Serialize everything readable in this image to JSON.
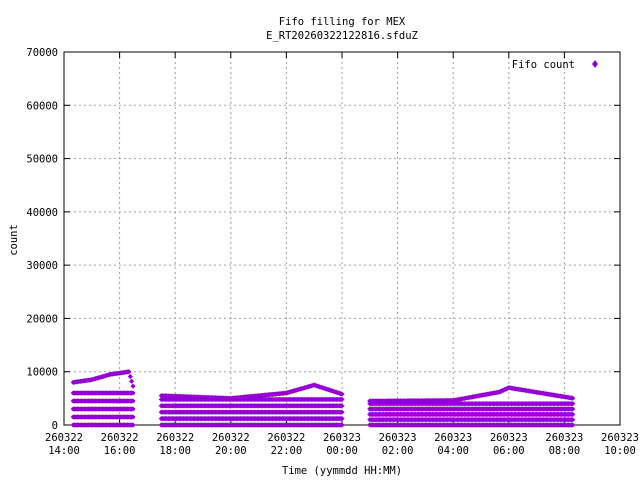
{
  "chart_data": {
    "type": "scatter",
    "title": "Fifo filling for MEX",
    "subtitle": "E_RT20260322122816.sfduZ",
    "xlabel": "Time (yymmdd HH:MM)",
    "ylabel": "count",
    "xlim": [
      "2026-03-22 14:00",
      "2026-03-23 10:00"
    ],
    "ylim": [
      0,
      70000
    ],
    "x_ticks": [
      {
        "date": "260322",
        "time": "14:00"
      },
      {
        "date": "260322",
        "time": "16:00"
      },
      {
        "date": "260322",
        "time": "18:00"
      },
      {
        "date": "260322",
        "time": "20:00"
      },
      {
        "date": "260322",
        "time": "22:00"
      },
      {
        "date": "260323",
        "time": "00:00"
      },
      {
        "date": "260323",
        "time": "02:00"
      },
      {
        "date": "260323",
        "time": "04:00"
      },
      {
        "date": "260323",
        "time": "06:00"
      },
      {
        "date": "260323",
        "time": "08:00"
      },
      {
        "date": "260323",
        "time": "10:00"
      }
    ],
    "y_ticks": [
      "0",
      "10000",
      "20000",
      "30000",
      "40000",
      "50000",
      "60000",
      "70000"
    ],
    "grid": true,
    "legend_position": "top-right",
    "series": [
      {
        "name": "Fifo count",
        "color": "#9400d3",
        "marker": "diamond",
        "segments": [
          {
            "x": [
              "2026-03-22 14:20",
              "2026-03-22 15:00",
              "2026-03-22 15:40",
              "2026-03-22 16:20",
              "2026-03-22 16:30"
            ],
            "levels": [
              0,
              1500,
              3000,
              4500,
              6000
            ],
            "peak": [
              8000,
              8500,
              9500,
              10000,
              7000
            ]
          },
          {
            "x": [
              "2026-03-22 17:30",
              "2026-03-22 20:00",
              "2026-03-22 22:00",
              "2026-03-22 23:00",
              "2026-03-23 00:00"
            ],
            "levels": [
              0,
              1200,
              2400,
              3600,
              4800
            ],
            "peak": [
              5500,
              5000,
              6000,
              7500,
              5800
            ]
          },
          {
            "x": [
              "2026-03-23 01:00",
              "2026-03-23 04:00",
              "2026-03-23 05:40",
              "2026-03-23 06:00",
              "2026-03-23 08:20"
            ],
            "levels": [
              0,
              1000,
              2000,
              3000,
              4000
            ],
            "peak": [
              4500,
              4600,
              6200,
              7000,
              5000
            ]
          }
        ]
      }
    ]
  }
}
